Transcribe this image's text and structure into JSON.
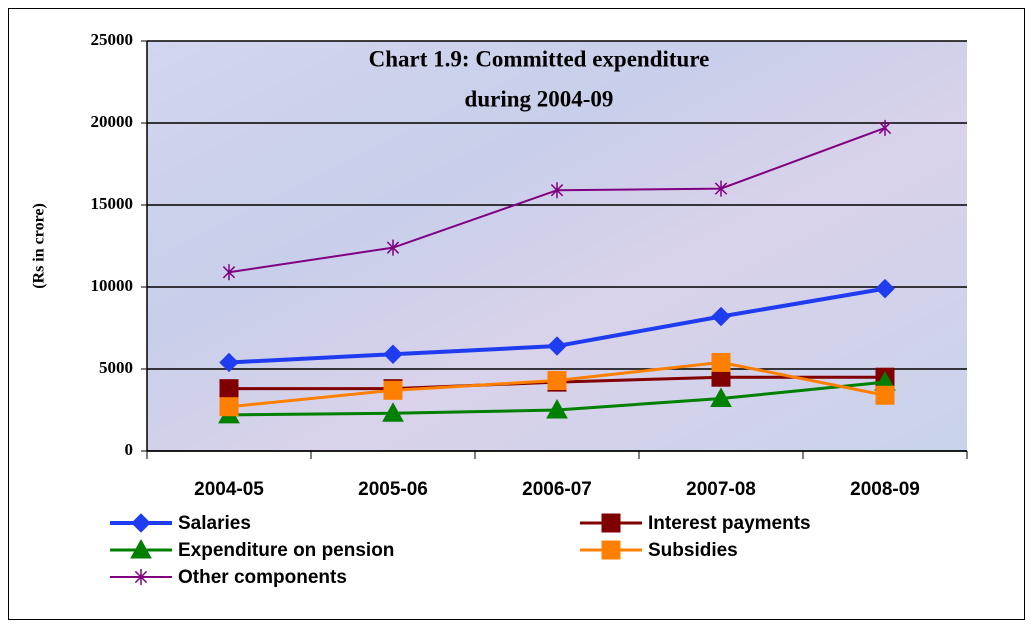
{
  "chart_data": {
    "type": "line",
    "title": [
      "Chart 1.9: Committed expenditure",
      "during 2004-09"
    ],
    "y_label": "(Rs in crore)",
    "categories": [
      "2004-05",
      "2005-06",
      "2006-07",
      "2007-08",
      "2008-09"
    ],
    "series": [
      {
        "name": "Salaries",
        "color": "#1f3cf0",
        "marker": "diamond",
        "values": [
          5400,
          5900,
          6400,
          8200,
          9900
        ]
      },
      {
        "name": "Interest payments",
        "color": "#800000",
        "marker": "square",
        "values": [
          3800,
          3800,
          4200,
          4500,
          4500
        ]
      },
      {
        "name": "Expenditure on pension",
        "color": "#008000",
        "marker": "triangle",
        "values": [
          2200,
          2300,
          2500,
          3200,
          4200
        ]
      },
      {
        "name": "Subsidies",
        "color": "#ff8000",
        "marker": "square",
        "values": [
          2700,
          3700,
          4300,
          5400,
          3400
        ]
      },
      {
        "name": "Other components",
        "color": "#800080",
        "marker": "asterisk",
        "values": [
          10900,
          12400,
          15900,
          16000,
          19700
        ]
      }
    ],
    "ylim": [
      0,
      25000
    ],
    "yticks": [
      0,
      5000,
      10000,
      15000,
      20000,
      25000
    ],
    "grid": true
  }
}
